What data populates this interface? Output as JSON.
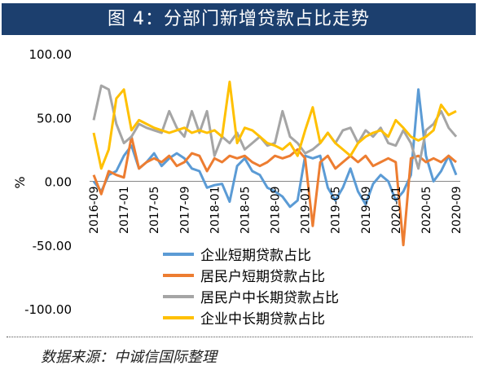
{
  "header": {
    "title": "图 4：分部门新增贷款占比走势"
  },
  "footer": {
    "source": "数据来源：中诚信国际整理"
  },
  "colors": {
    "title_bg": "#1c3f6e",
    "series": [
      "#5b9bd5",
      "#ed7d31",
      "#a5a5a5",
      "#ffc000"
    ]
  },
  "chart_data": {
    "type": "line",
    "ylabel": "%",
    "ylim": [
      -100,
      100
    ],
    "yticks": [
      "100.00",
      "50.00",
      "0.00",
      "-50.00",
      "-100.00"
    ],
    "x": [
      "2016-09",
      "2016-10",
      "2016-11",
      "2016-12",
      "2017-01",
      "2017-02",
      "2017-03",
      "2017-04",
      "2017-05",
      "2017-06",
      "2017-07",
      "2017-08",
      "2017-09",
      "2017-10",
      "2017-11",
      "2017-12",
      "2018-01",
      "2018-02",
      "2018-03",
      "2018-04",
      "2018-05",
      "2018-06",
      "2018-07",
      "2018-08",
      "2018-09",
      "2018-10",
      "2018-11",
      "2018-12",
      "2019-01",
      "2019-02",
      "2019-03",
      "2019-04",
      "2019-05",
      "2019-06",
      "2019-07",
      "2019-08",
      "2019-09",
      "2019-10",
      "2019-11",
      "2019-12",
      "2020-01",
      "2020-02",
      "2020-03",
      "2020-04",
      "2020-05",
      "2020-06",
      "2020-07",
      "2020-08",
      "2020-09"
    ],
    "xtick_labels": [
      "2016-09",
      "2017-01",
      "2017-05",
      "2017-09",
      "2018-01",
      "2018-05",
      "2018-09",
      "2019-01",
      "2019-05",
      "2019-09",
      "2020-01",
      "2020-05",
      "2020-09"
    ],
    "legend_position": "bottom-center",
    "series": [
      {
        "name": "企业短期贷款占比",
        "values": [
          0,
          -8,
          5,
          8,
          20,
          28,
          10,
          15,
          22,
          12,
          18,
          22,
          18,
          10,
          8,
          -5,
          -3,
          -2,
          -16,
          12,
          18,
          8,
          5,
          -5,
          -8,
          -12,
          -20,
          -15,
          20,
          18,
          20,
          -5,
          -15,
          -5,
          10,
          -8,
          -18,
          -2,
          5,
          0,
          -15,
          -8,
          5,
          72,
          20,
          0,
          8,
          20,
          5
        ]
      },
      {
        "name": "居民户短期贷款占比",
        "values": [
          5,
          -10,
          8,
          5,
          3,
          35,
          10,
          15,
          18,
          15,
          20,
          12,
          15,
          22,
          20,
          8,
          18,
          15,
          20,
          18,
          20,
          15,
          12,
          15,
          20,
          18,
          20,
          25,
          18,
          -35,
          15,
          20,
          10,
          15,
          20,
          15,
          20,
          12,
          15,
          18,
          15,
          -50,
          18,
          20,
          15,
          18,
          15,
          20,
          15
        ]
      },
      {
        "name": "居民户中长期贷款占比",
        "values": [
          48,
          75,
          72,
          45,
          30,
          35,
          45,
          42,
          40,
          38,
          55,
          42,
          35,
          55,
          38,
          55,
          20,
          35,
          30,
          38,
          25,
          30,
          35,
          28,
          30,
          55,
          35,
          30,
          22,
          25,
          30,
          38,
          30,
          40,
          42,
          30,
          40,
          35,
          42,
          30,
          28,
          40,
          30,
          10,
          40,
          45,
          55,
          42,
          35
        ]
      },
      {
        "name": "企业中长期贷款占比",
        "values": [
          38,
          10,
          25,
          65,
          72,
          40,
          48,
          45,
          42,
          40,
          38,
          40,
          42,
          38,
          40,
          38,
          40,
          35,
          78,
          30,
          42,
          40,
          35,
          30,
          28,
          25,
          30,
          20,
          40,
          58,
          30,
          38,
          30,
          25,
          20,
          30,
          35,
          38,
          40,
          35,
          48,
          42,
          35,
          32,
          35,
          40,
          60,
          52,
          55
        ]
      }
    ]
  }
}
